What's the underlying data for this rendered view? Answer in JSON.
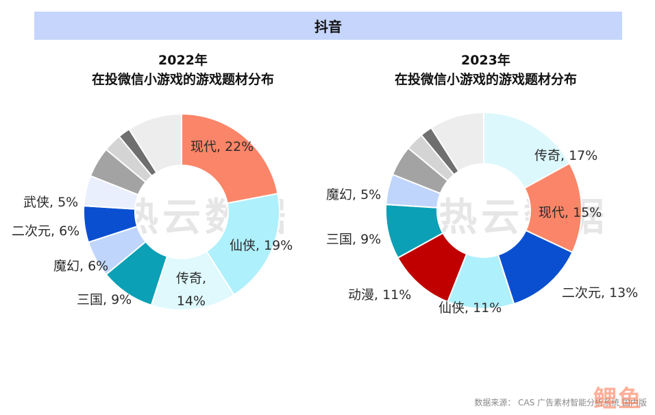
{
  "header": {
    "title": "抖音"
  },
  "watermark": {
    "text": "热云数据"
  },
  "footer": {
    "source": "数据来源： CAS 广告素材智能分析系统 国内版"
  },
  "brand": {
    "text": "鲤鱼"
  },
  "chart_data": [
    {
      "type": "pie",
      "title_line1": "2022年",
      "title_line2": "在投微信小游戏的游戏题材分布",
      "slices": [
        {
          "name": "现代",
          "value": 22,
          "color": "#fb8568",
          "label": "现代, 22%"
        },
        {
          "name": "仙侠",
          "value": 19,
          "color": "#aef0fb",
          "label": "仙侠, 19%"
        },
        {
          "name": "传奇",
          "value": 14,
          "color": "#dff9fd",
          "label": "传奇, 14%"
        },
        {
          "name": "三国",
          "value": 9,
          "color": "#0ba0b5",
          "label": "三国, 9%"
        },
        {
          "name": "魔幻",
          "value": 6,
          "color": "#bfd5fb",
          "label": "魔幻, 6%"
        },
        {
          "name": "二次元",
          "value": 6,
          "color": "#0a4fd0",
          "label": "二次元, 6%"
        },
        {
          "name": "武侠",
          "value": 5,
          "color": "#e9effd",
          "label": "武侠, 5%"
        },
        {
          "name": "",
          "value": 5,
          "color": "#a3a3a3",
          "label": ""
        },
        {
          "name": "",
          "value": 3,
          "color": "#d4d4d4",
          "label": ""
        },
        {
          "name": "",
          "value": 2,
          "color": "#6f6f6f",
          "label": ""
        },
        {
          "name": "",
          "value": 9,
          "color": "#ededed",
          "label": ""
        }
      ]
    },
    {
      "type": "pie",
      "title_line1": "2023年",
      "title_line2": "在投微信小游戏的游戏题材分布",
      "slices": [
        {
          "name": "传奇",
          "value": 17,
          "color": "#dcf8fd",
          "label": "传奇, 17%"
        },
        {
          "name": "现代",
          "value": 15,
          "color": "#fb8568",
          "label": "现代, 15%"
        },
        {
          "name": "二次元",
          "value": 13,
          "color": "#0a4fd0",
          "label": "二次元, 13%"
        },
        {
          "name": "仙侠",
          "value": 11,
          "color": "#aef0fb",
          "label": "仙侠, 11%"
        },
        {
          "name": "动漫",
          "value": 11,
          "color": "#c00000",
          "label": "动漫, 11%"
        },
        {
          "name": "三国",
          "value": 9,
          "color": "#0ba0b5",
          "label": "三国, 9%"
        },
        {
          "name": "魔幻",
          "value": 5,
          "color": "#bfd5fb",
          "label": "魔幻, 5%"
        },
        {
          "name": "",
          "value": 5,
          "color": "#a3a3a3",
          "label": ""
        },
        {
          "name": "",
          "value": 3,
          "color": "#d4d4d4",
          "label": ""
        },
        {
          "name": "",
          "value": 2,
          "color": "#6f6f6f",
          "label": ""
        },
        {
          "name": "",
          "value": 9,
          "color": "#ededed",
          "label": ""
        }
      ]
    }
  ]
}
